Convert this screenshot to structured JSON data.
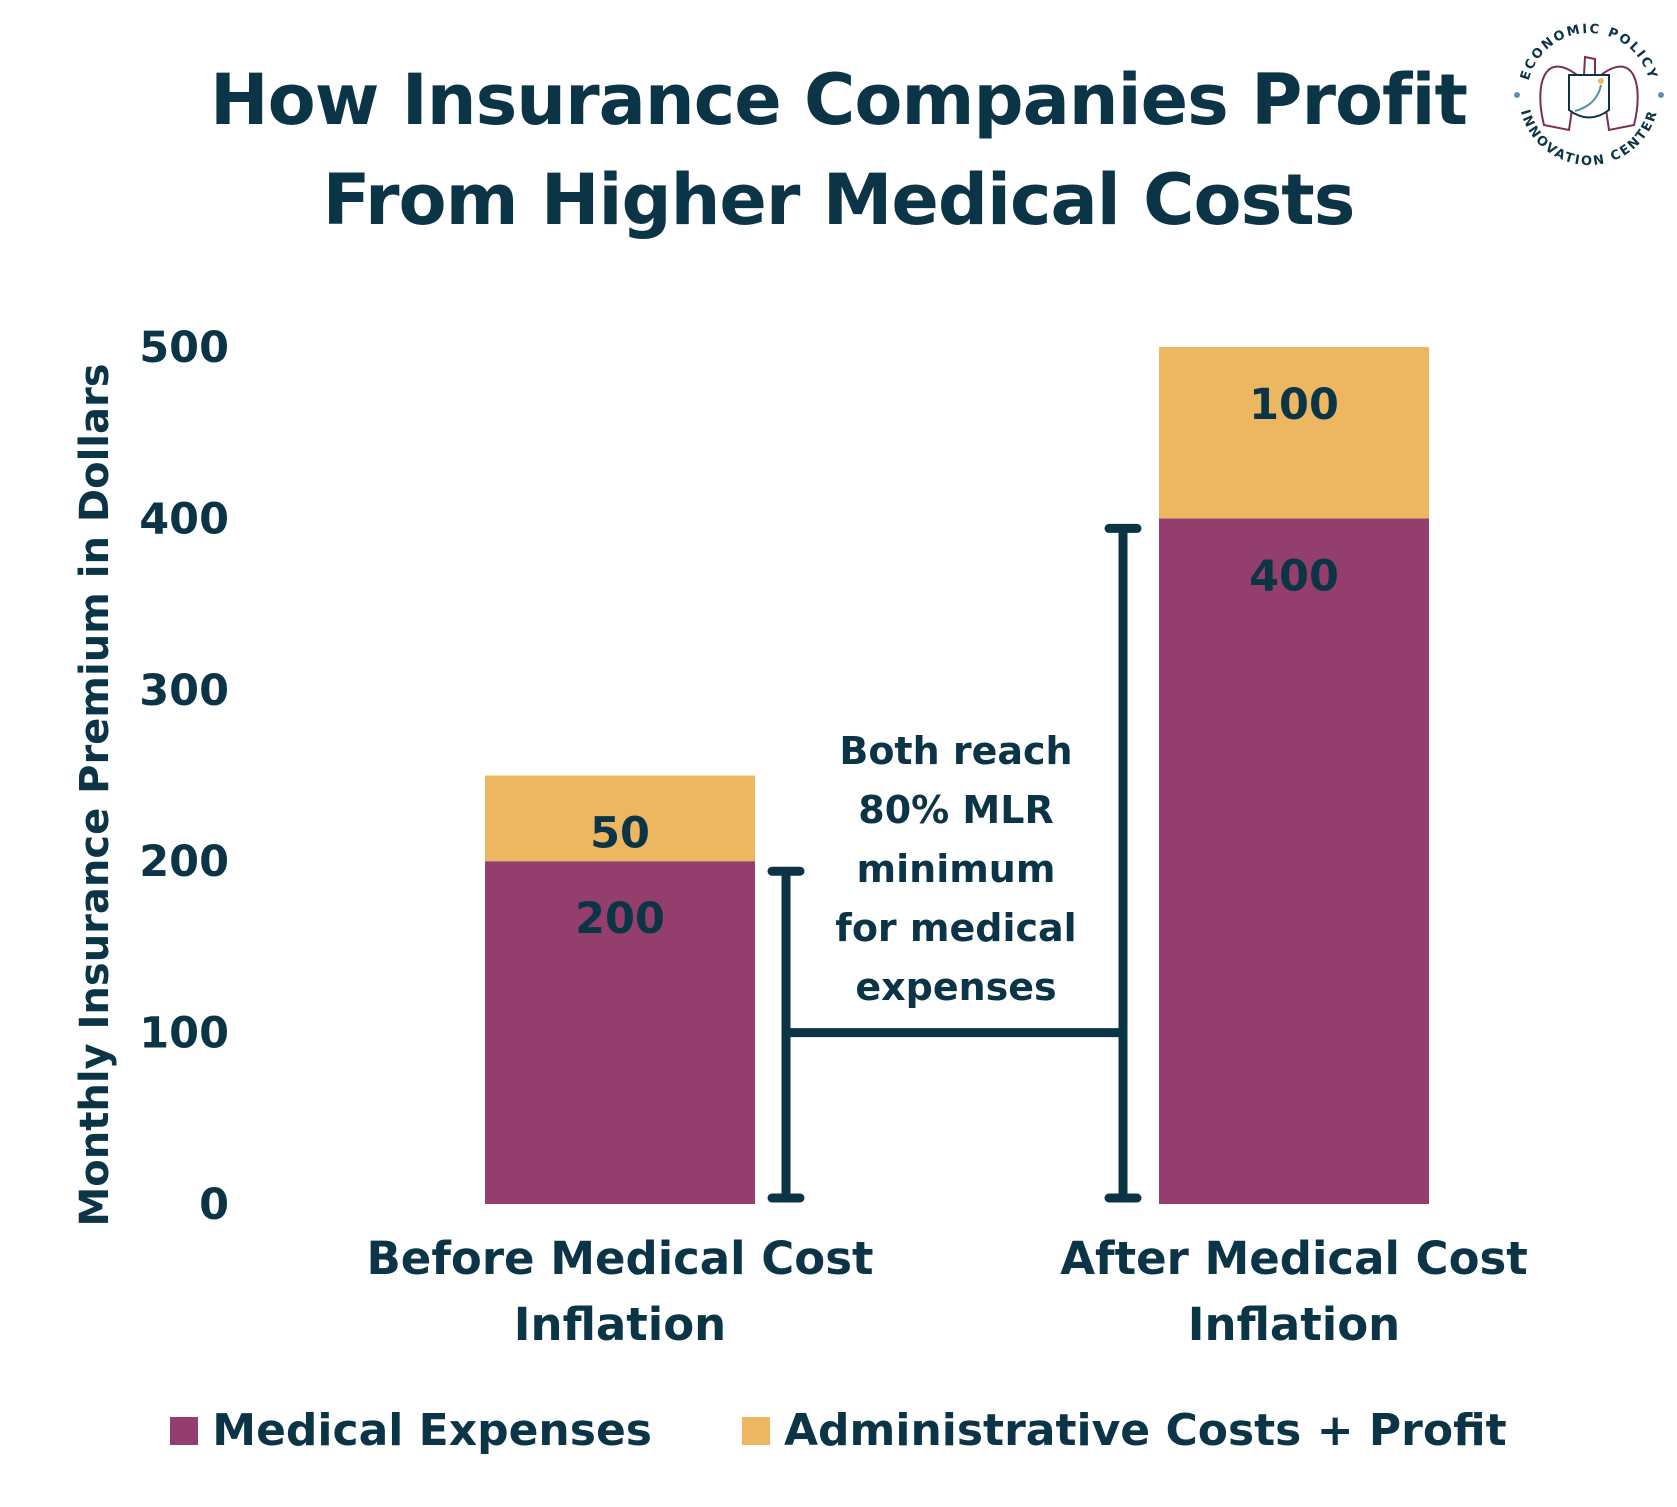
{
  "chart_data": {
    "type": "bar",
    "stacked": true,
    "title": "How Insurance Companies Profit From Higher Medical Costs",
    "title_lines": [
      "How Insurance Companies Profit",
      "From Higher Medical Costs"
    ],
    "ylabel": "Monthly Insurance Premium in Dollars",
    "xlabel": "",
    "ylim": [
      0,
      500
    ],
    "yticks": [
      0,
      100,
      200,
      300,
      400,
      500
    ],
    "grid": false,
    "categories": [
      "Before Medical Cost Inflation",
      "After Medical Cost Inflation"
    ],
    "category_lines": [
      [
        "Before Medical Cost",
        "Inflation"
      ],
      [
        "After Medical Cost",
        "Inflation"
      ]
    ],
    "series": [
      {
        "name": "Medical Expenses",
        "values": [
          200,
          400
        ],
        "color": "#943e6e"
      },
      {
        "name": "Administrative Costs + Profit",
        "values": [
          50,
          100
        ],
        "color": "#edb660"
      }
    ],
    "annotation": {
      "lines": [
        "Both reach",
        "80% MLR",
        "minimum",
        "for medical",
        "expenses"
      ],
      "connector_y": 100
    },
    "legend_placement": "bottom",
    "text_color": "#0b3446"
  },
  "logo": {
    "text_top": "ECONOMIC POLICY",
    "text_bottom": "INNOVATION CENTER"
  }
}
